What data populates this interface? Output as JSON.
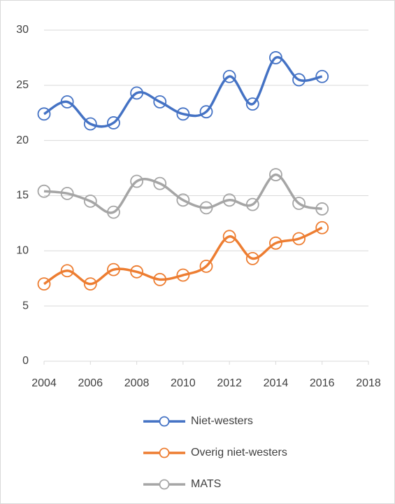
{
  "chart_data": {
    "type": "line",
    "x": [
      2004,
      2005,
      2006,
      2007,
      2008,
      2009,
      2010,
      2011,
      2012,
      2013,
      2014,
      2015,
      2016
    ],
    "xlim": [
      2004,
      2018
    ],
    "xticks": [
      2004,
      2006,
      2008,
      2010,
      2012,
      2014,
      2016,
      2018
    ],
    "ylim": [
      0,
      30
    ],
    "yticks": [
      0,
      5,
      10,
      15,
      20,
      25,
      30
    ],
    "grid": true,
    "smooth": true,
    "legend": "bottom",
    "series": [
      {
        "name": "Niet-westers",
        "color": "#4472c4",
        "values": [
          22.4,
          23.5,
          21.5,
          21.6,
          24.3,
          23.5,
          22.4,
          22.6,
          25.8,
          23.3,
          27.5,
          25.5,
          25.8
        ]
      },
      {
        "name": "Overig niet-westers",
        "color": "#ed7d31",
        "values": [
          7.0,
          8.2,
          7.0,
          8.3,
          8.1,
          7.4,
          7.8,
          8.6,
          11.3,
          9.3,
          10.7,
          11.1,
          12.1
        ]
      },
      {
        "name": "MATS",
        "color": "#a5a5a5",
        "values": [
          15.4,
          15.2,
          14.5,
          13.5,
          16.3,
          16.1,
          14.6,
          13.9,
          14.6,
          14.2,
          16.9,
          14.3,
          13.8
        ]
      }
    ]
  }
}
